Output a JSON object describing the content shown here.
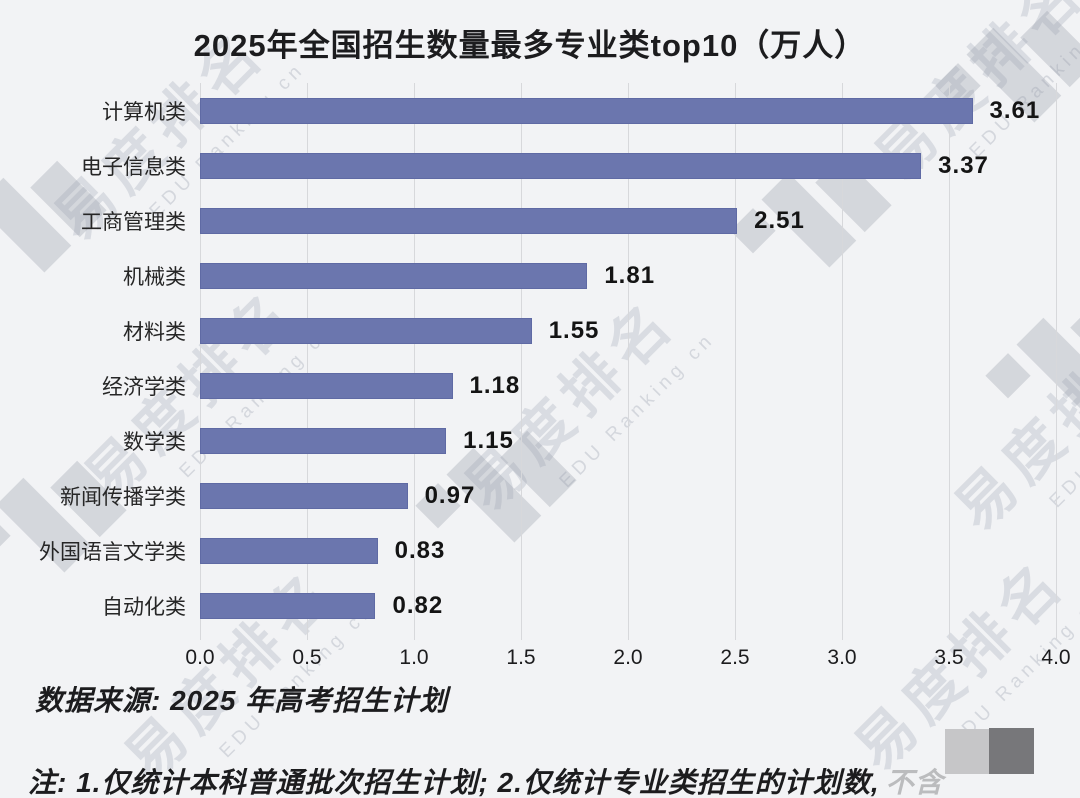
{
  "title": "2025年全国招生数量最多专业类top10（万人）",
  "chart_data": {
    "type": "bar",
    "orientation": "horizontal",
    "title": "2025年全国招生数量最多专业类top10（万人）",
    "categories": [
      "计算机类",
      "电子信息类",
      "工商管理类",
      "机械类",
      "材料类",
      "经济学类",
      "数学类",
      "新闻传播学类",
      "外国语言文学类",
      "自动化类"
    ],
    "values": [
      3.61,
      3.37,
      2.51,
      1.81,
      1.55,
      1.18,
      1.15,
      0.97,
      0.83,
      0.82
    ],
    "value_labels": [
      "3.61",
      "3.37",
      "2.51",
      "1.81",
      "1.55",
      "1.18",
      "1.15",
      "0.97",
      "0.83",
      "0.82"
    ],
    "xlim": [
      0,
      4.0
    ],
    "x_ticks": [
      "0.0",
      "0.5",
      "1.0",
      "1.5",
      "2.0",
      "2.5",
      "3.0",
      "3.5",
      "4.0"
    ],
    "grid": true,
    "legend": false,
    "bar_color": "#6B76AE"
  },
  "source_note": "数据来源: 2025 年高考招生计划",
  "footnote": {
    "visible": "注: 1.仅统计本科普通批次招生计划; 2.仅统计专业类招生的计划数,",
    "obscured": "不含"
  },
  "watermark": {
    "text_cn": "易度排名",
    "text_en": "EDU Ranking cn"
  },
  "colors": {
    "background": "#F2F3F5",
    "bar": "#6B76AE",
    "gridline": "#D7D8DB",
    "text": "#1C1C1E",
    "watermark": "#9CA2B0",
    "redaction_light": "#C6C6C8",
    "redaction_dark": "#77777A"
  }
}
